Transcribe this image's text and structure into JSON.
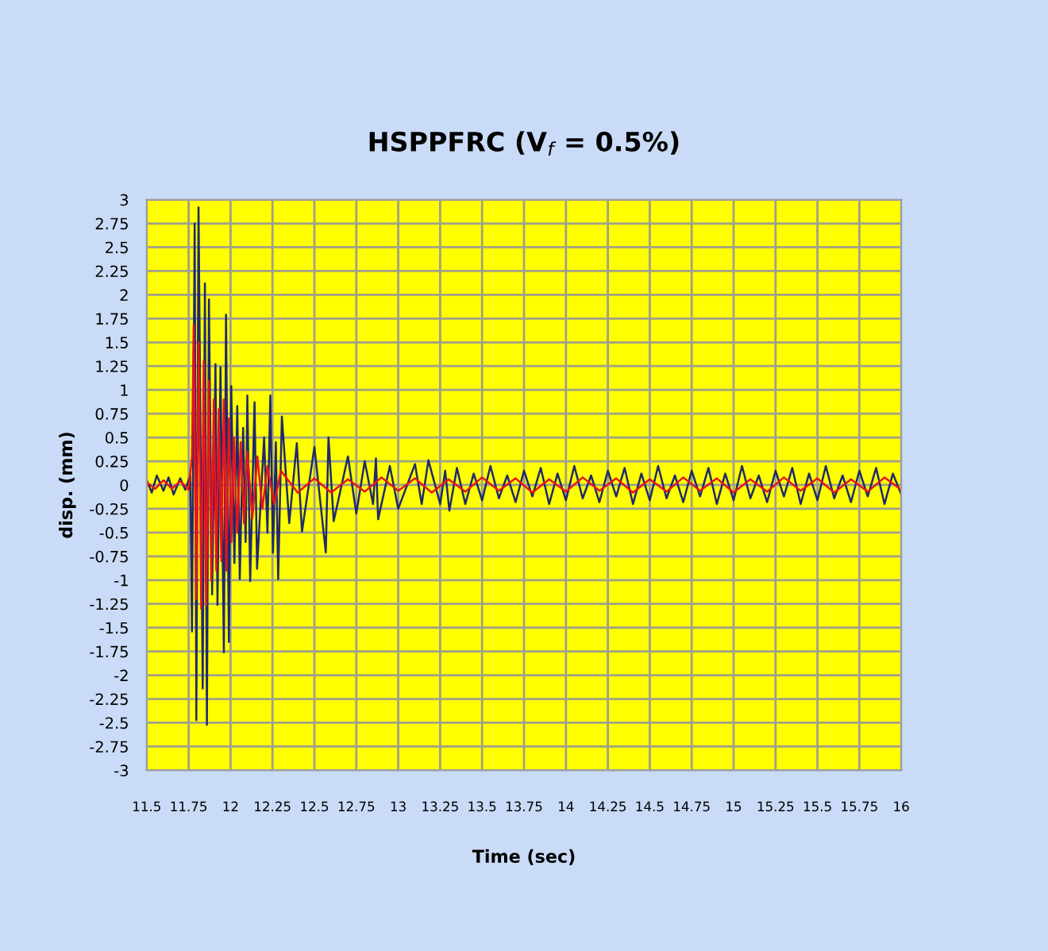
{
  "chart_data": {
    "type": "line",
    "title": "HSPPFRC (V$_{f}$ = 0.5%)",
    "xlabel": "Time (sec)",
    "ylabel": "disp. (mm)",
    "xlim": [
      11.5,
      16
    ],
    "ylim": [
      -3,
      3
    ],
    "xticks": [
      11.5,
      11.75,
      12,
      12.25,
      12.5,
      12.75,
      13,
      13.25,
      13.5,
      13.75,
      14,
      14.25,
      14.5,
      14.75,
      15,
      15.25,
      15.5,
      15.75,
      16
    ],
    "yticks": [
      -3,
      -2.75,
      -2.5,
      -2.25,
      -2,
      -1.75,
      -1.5,
      -1.25,
      -1,
      -0.75,
      -0.5,
      -0.25,
      0,
      0.25,
      0.5,
      0.75,
      1,
      1.25,
      1.5,
      1.75,
      2,
      2.25,
      2.5,
      2.75,
      3
    ],
    "grid": true,
    "marker": "none",
    "line_style": "solid",
    "series": [
      {
        "color": "#1f2a6b",
        "x": [
          11.5,
          11.53,
          11.56,
          11.6,
          11.63,
          11.66,
          11.7,
          11.73,
          11.76,
          11.77,
          11.786,
          11.796,
          11.809,
          11.834,
          11.847,
          11.859,
          11.871,
          11.89,
          11.91,
          11.922,
          11.94,
          11.96,
          11.973,
          11.99,
          12.004,
          12.023,
          12.04,
          12.055,
          12.075,
          12.09,
          12.1,
          12.117,
          12.143,
          12.158,
          12.2,
          12.22,
          12.237,
          12.253,
          12.27,
          12.284,
          12.306,
          12.35,
          12.395,
          12.426,
          12.5,
          12.568,
          12.584,
          12.615,
          12.7,
          12.75,
          12.8,
          12.85,
          12.867,
          12.88,
          12.95,
          13.0,
          13.1,
          13.14,
          13.18,
          13.25,
          13.28,
          13.305,
          13.35,
          13.4,
          13.45,
          13.5,
          13.55,
          13.6,
          13.65,
          13.7,
          13.75,
          13.8,
          13.85,
          13.9,
          13.95,
          14.0,
          14.05,
          14.1,
          14.15,
          14.2,
          14.25,
          14.3,
          14.35,
          14.4,
          14.45,
          14.5,
          14.55,
          14.6,
          14.65,
          14.7,
          14.75,
          14.8,
          14.85,
          14.9,
          14.95,
          15.0,
          15.05,
          15.1,
          15.15,
          15.2,
          15.25,
          15.3,
          15.35,
          15.4,
          15.45,
          15.5,
          15.55,
          15.6,
          15.65,
          15.7,
          15.75,
          15.8,
          15.85,
          15.9,
          15.95,
          16.0
        ],
        "values": [
          0.05,
          -0.08,
          0.1,
          -0.06,
          0.08,
          -0.1,
          0.07,
          -0.05,
          0.1,
          -1.54,
          2.75,
          -2.47,
          2.92,
          -2.14,
          2.12,
          -2.52,
          1.95,
          -1.15,
          1.27,
          -1.26,
          1.24,
          -1.76,
          1.79,
          -1.65,
          1.04,
          -0.82,
          0.83,
          -0.99,
          0.6,
          -0.6,
          0.94,
          -1.01,
          0.87,
          -0.88,
          0.5,
          -0.5,
          0.94,
          -0.71,
          0.45,
          -0.99,
          0.72,
          -0.4,
          0.44,
          -0.49,
          0.4,
          -0.71,
          0.5,
          -0.38,
          0.3,
          -0.3,
          0.25,
          -0.2,
          0.28,
          -0.36,
          0.2,
          -0.25,
          0.22,
          -0.2,
          0.26,
          -0.2,
          0.15,
          -0.27,
          0.18,
          -0.2,
          0.12,
          -0.16,
          0.2,
          -0.14,
          0.1,
          -0.18,
          0.15,
          -0.12,
          0.18,
          -0.2,
          0.12,
          -0.16,
          0.2,
          -0.14,
          0.1,
          -0.18,
          0.15,
          -0.12,
          0.18,
          -0.2,
          0.12,
          -0.16,
          0.2,
          -0.14,
          0.1,
          -0.18,
          0.15,
          -0.12,
          0.18,
          -0.2,
          0.12,
          -0.16,
          0.2,
          -0.14,
          0.1,
          -0.18,
          0.15,
          -0.12,
          0.18,
          -0.2,
          0.12,
          -0.16,
          0.2,
          -0.14,
          0.1,
          -0.18,
          0.15,
          -0.12,
          0.18,
          -0.2,
          0.12,
          -0.1
        ]
      },
      {
        "color": "#e8141e",
        "x": [
          11.5,
          11.55,
          11.6,
          11.65,
          11.7,
          11.75,
          11.77,
          11.78,
          11.795,
          11.81,
          11.825,
          11.84,
          11.855,
          11.87,
          11.885,
          11.9,
          11.915,
          11.93,
          11.945,
          11.96,
          11.975,
          11.99,
          12.005,
          12.02,
          12.04,
          12.06,
          12.08,
          12.1,
          12.13,
          12.16,
          12.19,
          12.22,
          12.26,
          12.3,
          12.4,
          12.5,
          12.6,
          12.7,
          12.8,
          12.9,
          13.0,
          13.1,
          13.2,
          13.3,
          13.4,
          13.5,
          13.6,
          13.7,
          13.8,
          13.9,
          14.0,
          14.1,
          14.2,
          14.3,
          14.4,
          14.5,
          14.6,
          14.7,
          14.8,
          14.9,
          15.0,
          15.1,
          15.2,
          15.3,
          15.4,
          15.5,
          15.6,
          15.7,
          15.8,
          15.9,
          16.0
        ],
        "values": [
          0.03,
          -0.04,
          0.05,
          -0.04,
          0.04,
          -0.05,
          0.3,
          1.68,
          -1.2,
          1.5,
          -1.3,
          1.3,
          -1.26,
          1.1,
          -1.0,
          0.9,
          -0.9,
          0.8,
          -0.8,
          0.9,
          -0.9,
          0.7,
          -0.6,
          0.5,
          -0.5,
          0.45,
          -0.4,
          0.35,
          -0.35,
          0.3,
          -0.25,
          0.2,
          -0.2,
          0.15,
          -0.08,
          0.07,
          -0.08,
          0.06,
          -0.07,
          0.08,
          -0.06,
          0.07,
          -0.08,
          0.06,
          -0.07,
          0.08,
          -0.06,
          0.07,
          -0.08,
          0.06,
          -0.07,
          0.08,
          -0.06,
          0.07,
          -0.08,
          0.06,
          -0.07,
          0.08,
          -0.06,
          0.07,
          -0.08,
          0.06,
          -0.07,
          0.08,
          -0.06,
          0.07,
          -0.08,
          0.06,
          -0.07,
          0.08,
          -0.05
        ]
      }
    ]
  }
}
